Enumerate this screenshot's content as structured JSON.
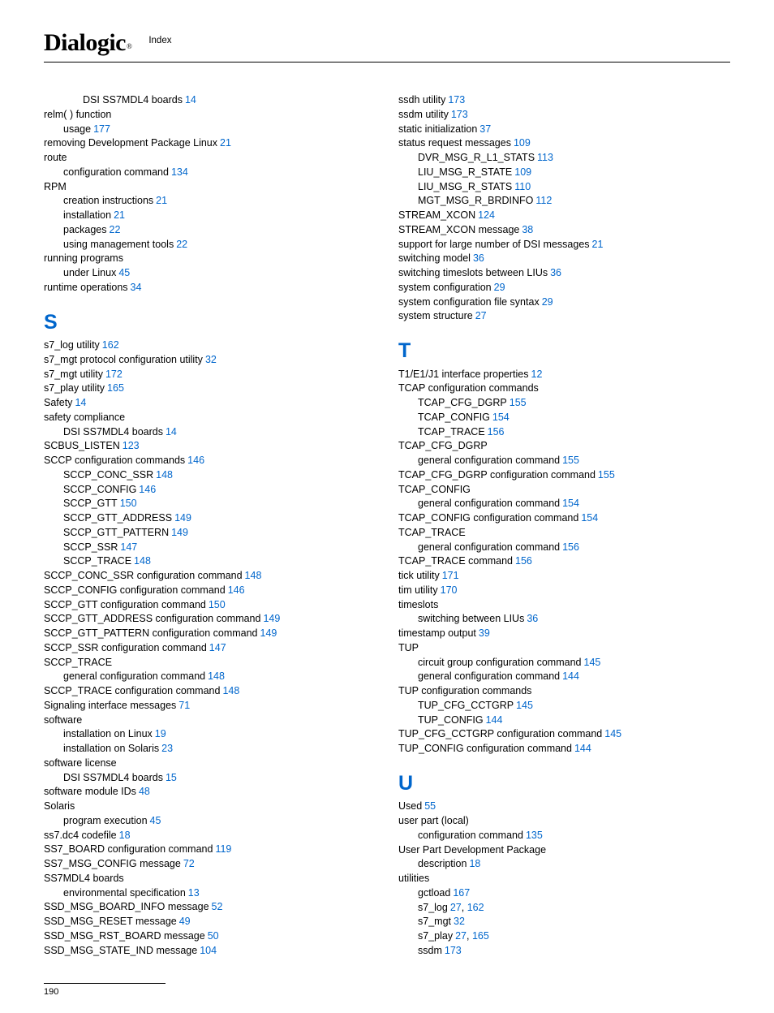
{
  "header": {
    "logo": "Dialogic",
    "reg": "®",
    "section": "Index"
  },
  "footer": {
    "page": "190"
  },
  "sections": {
    "S": "S",
    "T": "T",
    "U": "U"
  },
  "c1": [
    {
      "t": "DSI SS7MDL4 boards",
      "p": "14",
      "i": 2
    },
    {
      "t": "relm( ) function",
      "i": 0
    },
    {
      "t": "usage",
      "p": "177",
      "i": 1
    },
    {
      "t": "removing Development Package Linux",
      "p": "21",
      "i": 0
    },
    {
      "t": "route",
      "i": 0
    },
    {
      "t": "configuration command",
      "p": "134",
      "i": 1
    },
    {
      "t": "RPM",
      "i": 0
    },
    {
      "t": "creation instructions",
      "p": "21",
      "i": 1
    },
    {
      "t": "installation",
      "p": "21",
      "i": 1
    },
    {
      "t": "packages",
      "p": "22",
      "i": 1
    },
    {
      "t": "using management tools",
      "p": "22",
      "i": 1
    },
    {
      "t": "running programs",
      "i": 0
    },
    {
      "t": "under Linux",
      "p": "45",
      "i": 1
    },
    {
      "t": "runtime operations",
      "p": "34",
      "i": 0
    }
  ],
  "c1s": [
    {
      "t": "s7_log utility",
      "p": "162",
      "i": 0
    },
    {
      "t": "s7_mgt protocol configuration utility",
      "p": "32",
      "i": 0
    },
    {
      "t": "s7_mgt utility",
      "p": "172",
      "i": 0
    },
    {
      "t": "s7_play utility",
      "p": "165",
      "i": 0
    },
    {
      "t": "Safety",
      "p": "14",
      "i": 0
    },
    {
      "t": "safety compliance",
      "i": 0
    },
    {
      "t": "DSI SS7MDL4 boards",
      "p": "14",
      "i": 1
    },
    {
      "t": "SCBUS_LISTEN",
      "p": "123",
      "i": 0
    },
    {
      "t": "SCCP configuration commands",
      "p": "146",
      "i": 0
    },
    {
      "t": "SCCP_CONC_SSR",
      "p": "148",
      "i": 1
    },
    {
      "t": "SCCP_CONFIG",
      "p": "146",
      "i": 1
    },
    {
      "t": "SCCP_GTT",
      "p": "150",
      "i": 1
    },
    {
      "t": "SCCP_GTT_ADDRESS",
      "p": "149",
      "i": 1
    },
    {
      "t": "SCCP_GTT_PATTERN",
      "p": "149",
      "i": 1
    },
    {
      "t": "SCCP_SSR",
      "p": "147",
      "i": 1
    },
    {
      "t": "SCCP_TRACE",
      "p": "148",
      "i": 1
    },
    {
      "t": "SCCP_CONC_SSR configuration command",
      "p": "148",
      "i": 0
    },
    {
      "t": "SCCP_CONFIG configuration command",
      "p": "146",
      "i": 0
    },
    {
      "t": "SCCP_GTT configuration command",
      "p": "150",
      "i": 0
    },
    {
      "t": "SCCP_GTT_ADDRESS configuration command",
      "p": "149",
      "i": 0
    },
    {
      "t": "SCCP_GTT_PATTERN configuration command",
      "p": "149",
      "i": 0
    },
    {
      "t": "SCCP_SSR configuration command",
      "p": "147",
      "i": 0
    },
    {
      "t": "SCCP_TRACE",
      "i": 0
    },
    {
      "t": "general configuration command",
      "p": "148",
      "i": 1
    },
    {
      "t": "SCCP_TRACE configuration command",
      "p": "148",
      "i": 0
    },
    {
      "t": "Signaling interface messages",
      "p": "71",
      "i": 0
    },
    {
      "t": "software",
      "i": 0
    },
    {
      "t": "installation on Linux",
      "p": "19",
      "i": 1
    },
    {
      "t": "installation on Solaris",
      "p": "23",
      "i": 1
    },
    {
      "t": "software license",
      "i": 0
    },
    {
      "t": "DSI SS7MDL4 boards",
      "p": "15",
      "i": 1
    },
    {
      "t": "software module IDs",
      "p": "48",
      "i": 0
    },
    {
      "t": "Solaris",
      "i": 0
    },
    {
      "t": "program execution",
      "p": "45",
      "i": 1
    },
    {
      "t": "ss7.dc4 codefile",
      "p": "18",
      "i": 0
    },
    {
      "t": "SS7_BOARD configuration command",
      "p": "119",
      "i": 0
    },
    {
      "t": "SS7_MSG_CONFIG message",
      "p": "72",
      "i": 0
    },
    {
      "t": "SS7MDL4 boards",
      "i": 0
    },
    {
      "t": "environmental specification",
      "p": "13",
      "i": 1
    },
    {
      "t": "SSD_MSG_BOARD_INFO message",
      "p": "52",
      "i": 0
    },
    {
      "t": "SSD_MSG_RESET message",
      "p": "49",
      "i": 0
    },
    {
      "t": "SSD_MSG_RST_BOARD message",
      "p": "50",
      "i": 0
    },
    {
      "t": "SSD_MSG_STATE_IND message",
      "p": "104",
      "i": 0
    }
  ],
  "c2a": [
    {
      "t": "ssdh utility",
      "p": "173",
      "i": 0
    },
    {
      "t": "ssdm utility",
      "p": "173",
      "i": 0
    },
    {
      "t": "static initialization",
      "p": "37",
      "i": 0
    },
    {
      "t": "status request messages",
      "p": "109",
      "i": 0
    },
    {
      "t": "DVR_MSG_R_L1_STATS",
      "p": "113",
      "i": 1
    },
    {
      "t": "LIU_MSG_R_STATE",
      "p": "109",
      "i": 1
    },
    {
      "t": "LIU_MSG_R_STATS",
      "p": "110",
      "i": 1
    },
    {
      "t": "MGT_MSG_R_BRDINFO",
      "p": "112",
      "i": 1
    },
    {
      "t": "STREAM_XCON",
      "p": "124",
      "i": 0
    },
    {
      "t": "STREAM_XCON message",
      "p": "38",
      "i": 0
    },
    {
      "t": "support for large number of DSI messages",
      "p": "21",
      "i": 0
    },
    {
      "t": "switching model",
      "p": "36",
      "i": 0
    },
    {
      "t": "switching timeslots between LIUs",
      "p": "36",
      "i": 0
    },
    {
      "t": "system configuration",
      "p": "29",
      "i": 0
    },
    {
      "t": "system configuration file syntax",
      "p": "29",
      "i": 0
    },
    {
      "t": "system structure",
      "p": "27",
      "i": 0
    }
  ],
  "c2t": [
    {
      "t": "T1/E1/J1 interface properties",
      "p": "12",
      "i": 0
    },
    {
      "t": "TCAP configuration commands",
      "i": 0
    },
    {
      "t": "TCAP_CFG_DGRP",
      "p": "155",
      "i": 1
    },
    {
      "t": "TCAP_CONFIG",
      "p": "154",
      "i": 1
    },
    {
      "t": "TCAP_TRACE",
      "p": "156",
      "i": 1
    },
    {
      "t": "TCAP_CFG_DGRP",
      "i": 0
    },
    {
      "t": "general configuration command",
      "p": "155",
      "i": 1
    },
    {
      "t": "TCAP_CFG_DGRP configuration command",
      "p": "155",
      "i": 0
    },
    {
      "t": "TCAP_CONFIG",
      "i": 0
    },
    {
      "t": "general configuration command",
      "p": "154",
      "i": 1
    },
    {
      "t": "TCAP_CONFIG configuration command",
      "p": "154",
      "i": 0
    },
    {
      "t": "TCAP_TRACE",
      "i": 0
    },
    {
      "t": "general configuration command",
      "p": "156",
      "i": 1
    },
    {
      "t": "TCAP_TRACE command",
      "p": "156",
      "i": 0
    },
    {
      "t": "tick utility",
      "p": "171",
      "i": 0
    },
    {
      "t": "tim utility",
      "p": "170",
      "i": 0
    },
    {
      "t": "timeslots",
      "i": 0
    },
    {
      "t": "switching between LIUs",
      "p": "36",
      "i": 1
    },
    {
      "t": "timestamp output",
      "p": "39",
      "i": 0
    },
    {
      "t": "TUP",
      "i": 0
    },
    {
      "t": "circuit group configuration command",
      "p": "145",
      "i": 1
    },
    {
      "t": "general configuration command",
      "p": "144",
      "i": 1
    },
    {
      "t": "TUP configuration commands",
      "i": 0
    },
    {
      "t": "TUP_CFG_CCTGRP",
      "p": "145",
      "i": 1
    },
    {
      "t": "TUP_CONFIG",
      "p": "144",
      "i": 1
    },
    {
      "t": "TUP_CFG_CCTGRP configuration command",
      "p": "145",
      "i": 0
    },
    {
      "t": "TUP_CONFIG configuration command",
      "p": "144",
      "i": 0
    }
  ],
  "c2u": [
    {
      "t": "Used",
      "p": "55",
      "i": 0
    },
    {
      "t": "user part (local)",
      "i": 0
    },
    {
      "t": "configuration command",
      "p": "135",
      "i": 1
    },
    {
      "t": "User Part Development Package",
      "i": 0
    },
    {
      "t": "description",
      "p": "18",
      "i": 1
    },
    {
      "t": "utilities",
      "i": 0
    },
    {
      "t": "gctload",
      "p": "167",
      "i": 1
    },
    {
      "t": "s7_log",
      "p": "27",
      "p2": "162",
      "i": 1
    },
    {
      "t": "s7_mgt",
      "p": "32",
      "i": 1
    },
    {
      "t": "s7_play",
      "p": "27",
      "p2": "165",
      "i": 1
    },
    {
      "t": "ssdm",
      "p": "173",
      "i": 1
    }
  ]
}
